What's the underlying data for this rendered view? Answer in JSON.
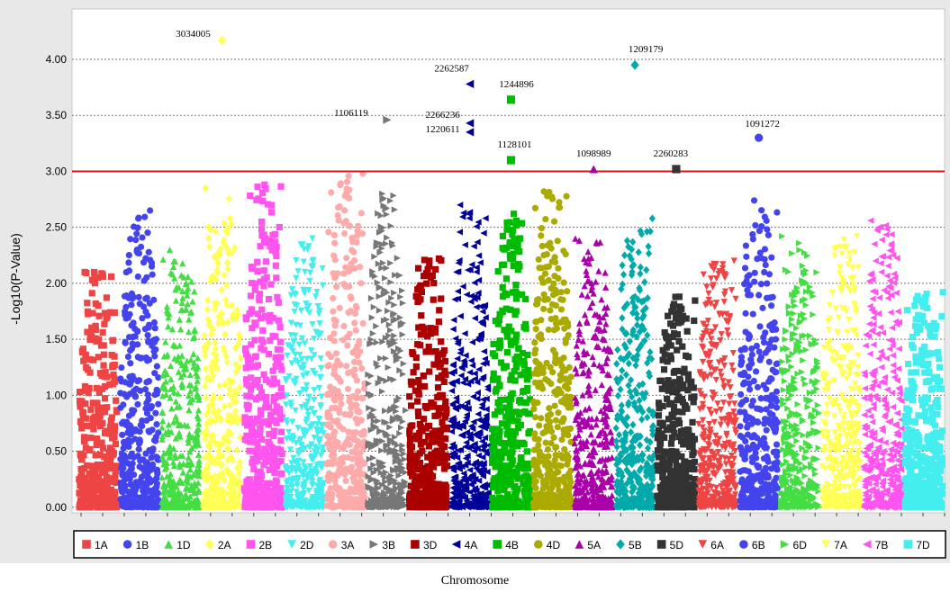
{
  "chart_data": {
    "type": "scatter",
    "title": "",
    "xlabel": "Chromosome",
    "ylabel": "-Log10(P-Value)",
    "ylim": [
      -0.05,
      4.45
    ],
    "yticks": [
      0.0,
      0.5,
      1.0,
      1.5,
      2.0,
      2.5,
      3.0,
      3.5,
      4.0
    ],
    "ytick_labels": [
      "0.00",
      "0.50",
      "1.00",
      "1.50",
      "2.00",
      "2.50",
      "3.00",
      "3.50",
      "4.00"
    ],
    "grid": true,
    "threshold": 3.0,
    "threshold_color": "#dd1111",
    "legend_position": "bottom",
    "chromosome_order": [
      "1A",
      "1B",
      "1D",
      "2A",
      "2B",
      "2D",
      "3A",
      "3B",
      "3D",
      "4A",
      "4B",
      "4D",
      "5A",
      "5B",
      "5D",
      "6A",
      "6B",
      "6D",
      "7A",
      "7B",
      "7D"
    ],
    "series": [
      {
        "name": "1A",
        "color": "#ee4444",
        "marker": "square",
        "max": 2.1
      },
      {
        "name": "1B",
        "color": "#4444ee",
        "marker": "circle",
        "max": 2.65
      },
      {
        "name": "1D",
        "color": "#44dd44",
        "marker": "triangle-up",
        "max": 2.3
      },
      {
        "name": "2A",
        "color": "#ffff55",
        "marker": "diamond",
        "max": 2.85
      },
      {
        "name": "2B",
        "color": "#ff55ee",
        "marker": "square",
        "max": 2.88
      },
      {
        "name": "2D",
        "color": "#44eeee",
        "marker": "triangle-down",
        "max": 2.4
      },
      {
        "name": "3A",
        "color": "#ffaaaa",
        "marker": "circle",
        "max": 2.98
      },
      {
        "name": "3B",
        "color": "#777777",
        "marker": "triangle-right",
        "max": 2.8
      },
      {
        "name": "3D",
        "color": "#aa0000",
        "marker": "square",
        "max": 2.22
      },
      {
        "name": "4A",
        "color": "#000099",
        "marker": "triangle-left",
        "max": 2.7
      },
      {
        "name": "4B",
        "color": "#00bb00",
        "marker": "square",
        "max": 2.62
      },
      {
        "name": "4D",
        "color": "#aaaa00",
        "marker": "circle",
        "max": 2.82
      },
      {
        "name": "5A",
        "color": "#aa00aa",
        "marker": "triangle-up",
        "max": 2.4
      },
      {
        "name": "5B",
        "color": "#00aaaa",
        "marker": "diamond",
        "max": 2.58
      },
      {
        "name": "5D",
        "color": "#333333",
        "marker": "square",
        "max": 1.88
      },
      {
        "name": "6A",
        "color": "#ee4444",
        "marker": "triangle-down",
        "max": 2.2
      },
      {
        "name": "6B",
        "color": "#4444ee",
        "marker": "circle",
        "max": 2.74
      },
      {
        "name": "6D",
        "color": "#44dd44",
        "marker": "triangle-right",
        "max": 2.42
      },
      {
        "name": "7A",
        "color": "#ffff55",
        "marker": "triangle-down",
        "max": 2.42
      },
      {
        "name": "7B",
        "color": "#ff55ee",
        "marker": "triangle-left",
        "max": 2.56
      },
      {
        "name": "7D",
        "color": "#44eeee",
        "marker": "square",
        "max": 1.92
      }
    ],
    "highlights": [
      {
        "label": "3034005",
        "chrom": "2A",
        "y": 4.17
      },
      {
        "label": "1209179",
        "chrom": "5B",
        "y": 3.95
      },
      {
        "label": "2262587",
        "chrom": "4A",
        "y": 3.78
      },
      {
        "label": "1244896",
        "chrom": "4B",
        "y": 3.64
      },
      {
        "label": "1106119",
        "chrom": "3B",
        "y": 3.46
      },
      {
        "label": "2266236",
        "chrom": "4A",
        "y": 3.43
      },
      {
        "label": "1220611",
        "chrom": "4A",
        "y": 3.35
      },
      {
        "label": "1091272",
        "chrom": "6B",
        "y": 3.3
      },
      {
        "label": "1128101",
        "chrom": "4B",
        "y": 3.1
      },
      {
        "label": "1098989",
        "chrom": "5A",
        "y": 3.02
      },
      {
        "label": "2260283",
        "chrom": "5D",
        "y": 3.02
      }
    ]
  }
}
